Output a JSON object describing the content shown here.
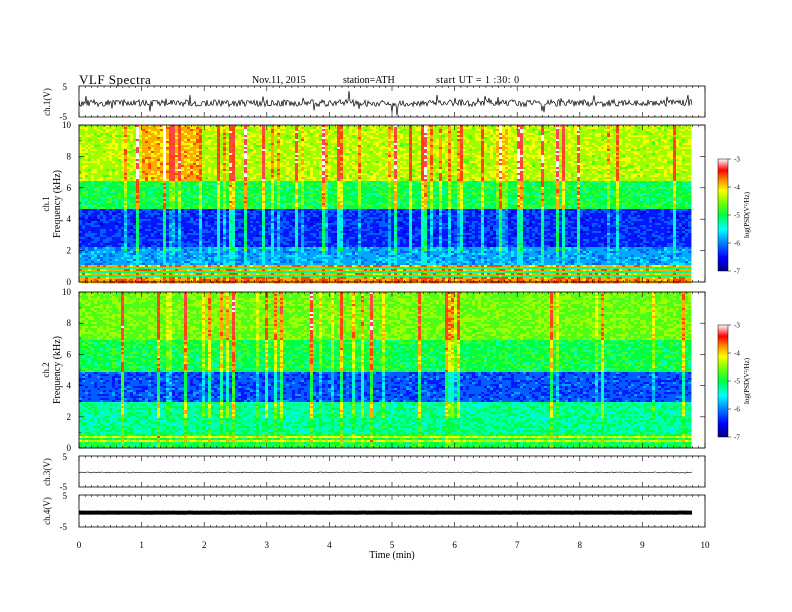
{
  "header": {
    "title": "VLF  Spectra",
    "date": "Nov.11, 2015",
    "station": "station=ATH",
    "start": "start  UT  =   1  :30: 0"
  },
  "chart_data": [
    {
      "type": "line",
      "ylabel": "ch.1(V)",
      "ylim": [
        -5,
        5
      ],
      "y_ticks": [
        "5",
        "-5"
      ],
      "xlim": [
        0,
        10
      ],
      "data_end_min": 9.8,
      "baseline": -0.5,
      "color": "#000000"
    },
    {
      "type": "heatmap",
      "ylabel_top": "ch.1",
      "ylabel": "Frequency  (kHz)",
      "ylim": [
        0,
        10
      ],
      "y_ticks": [
        "0",
        "2",
        "4",
        "6",
        "8",
        "10"
      ],
      "xlim": [
        0,
        10
      ],
      "data_end_min": 9.8,
      "colorbar": {
        "label": "log(PSD(V²/Hz)",
        "range": [
          -7,
          -3
        ],
        "ticks": [
          "-3",
          "-4",
          "-5",
          "-6",
          "-7"
        ]
      }
    },
    {
      "type": "heatmap",
      "ylabel_top": "ch.2",
      "ylabel": "Frequency  (kHz)",
      "ylim": [
        0,
        10
      ],
      "y_ticks": [
        "0",
        "2",
        "4",
        "6",
        "8",
        "10"
      ],
      "xlim": [
        0,
        10
      ],
      "data_end_min": 9.8,
      "colorbar": {
        "label": "log(PSD(V²/Hz)",
        "range": [
          -7,
          -3
        ],
        "ticks": [
          "-3",
          "-4",
          "-5",
          "-6",
          "-7"
        ]
      }
    },
    {
      "type": "line",
      "ylabel": "ch.3(V)",
      "ylim": [
        -5,
        5
      ],
      "y_ticks": [
        "5",
        "-5"
      ],
      "xlim": [
        0,
        10
      ],
      "data_end_min": 9.8,
      "baseline": -0.3,
      "color": "#000000"
    },
    {
      "type": "line",
      "ylabel": "ch.4(V)",
      "ylim": [
        -5,
        5
      ],
      "y_ticks": [
        "5",
        "-5"
      ],
      "xlim": [
        0,
        10
      ],
      "data_end_min": 9.8,
      "baseline": -0.5,
      "color": "#000000"
    }
  ],
  "x_axis": {
    "label": "Time  (min)",
    "ticks": [
      "0",
      "1",
      "2",
      "3",
      "4",
      "5",
      "6",
      "7",
      "8",
      "9",
      "10"
    ]
  }
}
